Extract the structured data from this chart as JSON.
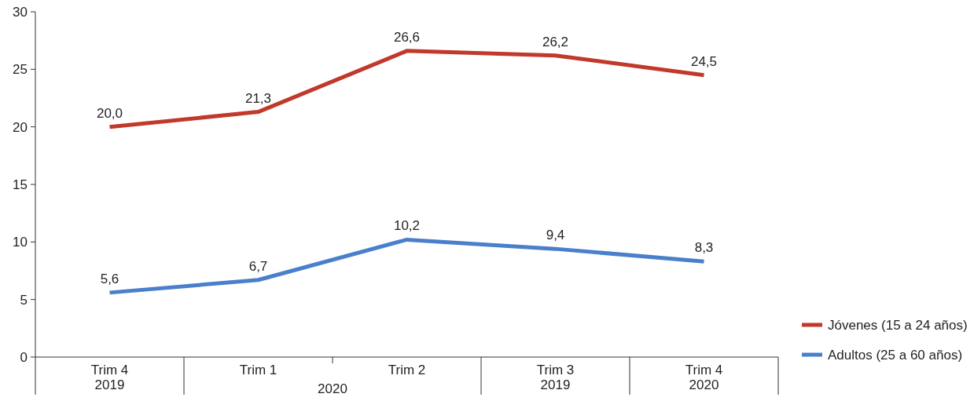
{
  "chart_data": {
    "type": "line",
    "categories": [
      "Trim 4\n2019",
      "Trim 1",
      "Trim 2",
      "Trim 3\n2019",
      "Trim 4\n2020"
    ],
    "series": [
      {
        "name": "Jóvenes (15 a 24 años)",
        "color": "#c0392b",
        "values": [
          20.0,
          21.3,
          26.6,
          26.2,
          24.5
        ],
        "value_labels": [
          "20,0",
          "21,3",
          "26,6",
          "26,2",
          "24,5"
        ]
      },
      {
        "name": "Adultos (25 a 60 años)",
        "color": "#4a7fcb",
        "values": [
          5.6,
          6.7,
          10.2,
          9.4,
          8.3
        ],
        "value_labels": [
          "5,6",
          "6,7",
          "10,2",
          "9,4",
          "8,3"
        ]
      }
    ],
    "ylim": [
      0,
      30
    ],
    "yticks": [
      0,
      5,
      10,
      15,
      20,
      25,
      30
    ],
    "grid": false,
    "legend": "bottom right",
    "marker": "none",
    "line_style": "solid",
    "annotations": [
      "2020"
    ]
  }
}
